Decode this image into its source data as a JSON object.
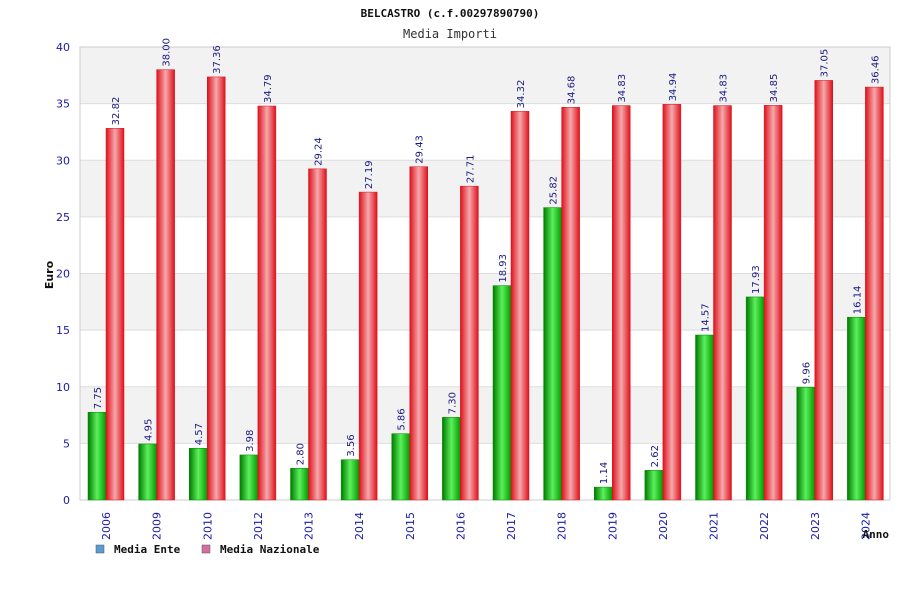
{
  "chart_data": {
    "type": "bar",
    "title": "BELCASTRO (c.f.00297890790)",
    "subtitle": "Media Importi",
    "xlabel": "Anno",
    "ylabel": "Euro",
    "ylim": [
      0,
      40
    ],
    "yticks": [
      "0",
      "5",
      "10",
      "15",
      "20",
      "25",
      "30",
      "35",
      "40"
    ],
    "grid": true,
    "legend_position": "bottom-left",
    "categories": [
      "2006",
      "2009",
      "2010",
      "2012",
      "2013",
      "2014",
      "2015",
      "2016",
      "2017",
      "2018",
      "2019",
      "2020",
      "2021",
      "2022",
      "2023",
      "2024"
    ],
    "series": [
      {
        "name": "Media Ente",
        "color": "#00c000",
        "legend_color": "#5b9bd5",
        "values": [
          7.75,
          4.95,
          4.57,
          3.98,
          2.8,
          3.56,
          5.86,
          7.3,
          18.93,
          25.82,
          1.14,
          2.62,
          14.57,
          17.93,
          9.96,
          16.14
        ],
        "labels": [
          "7.75",
          "4.95",
          "4.57",
          "3.98",
          "2.80",
          "3.56",
          "5.86",
          "7.30",
          "18.93",
          "25.82",
          "1.14",
          "2.62",
          "14.57",
          "17.93",
          "9.96",
          "16.14"
        ]
      },
      {
        "name": "Media Nazionale",
        "color": "#e8202a",
        "legend_color": "#d36fa0",
        "values": [
          32.82,
          38.0,
          37.36,
          34.79,
          29.24,
          27.19,
          29.43,
          27.71,
          34.32,
          34.68,
          34.83,
          34.94,
          34.83,
          34.85,
          37.05,
          36.46
        ],
        "labels": [
          "32.82",
          "38.00",
          "37.36",
          "34.79",
          "29.24",
          "27.19",
          "29.43",
          "27.71",
          "34.32",
          "34.68",
          "34.83",
          "34.94",
          "34.83",
          "34.85",
          "37.05",
          "36.46"
        ]
      }
    ]
  }
}
